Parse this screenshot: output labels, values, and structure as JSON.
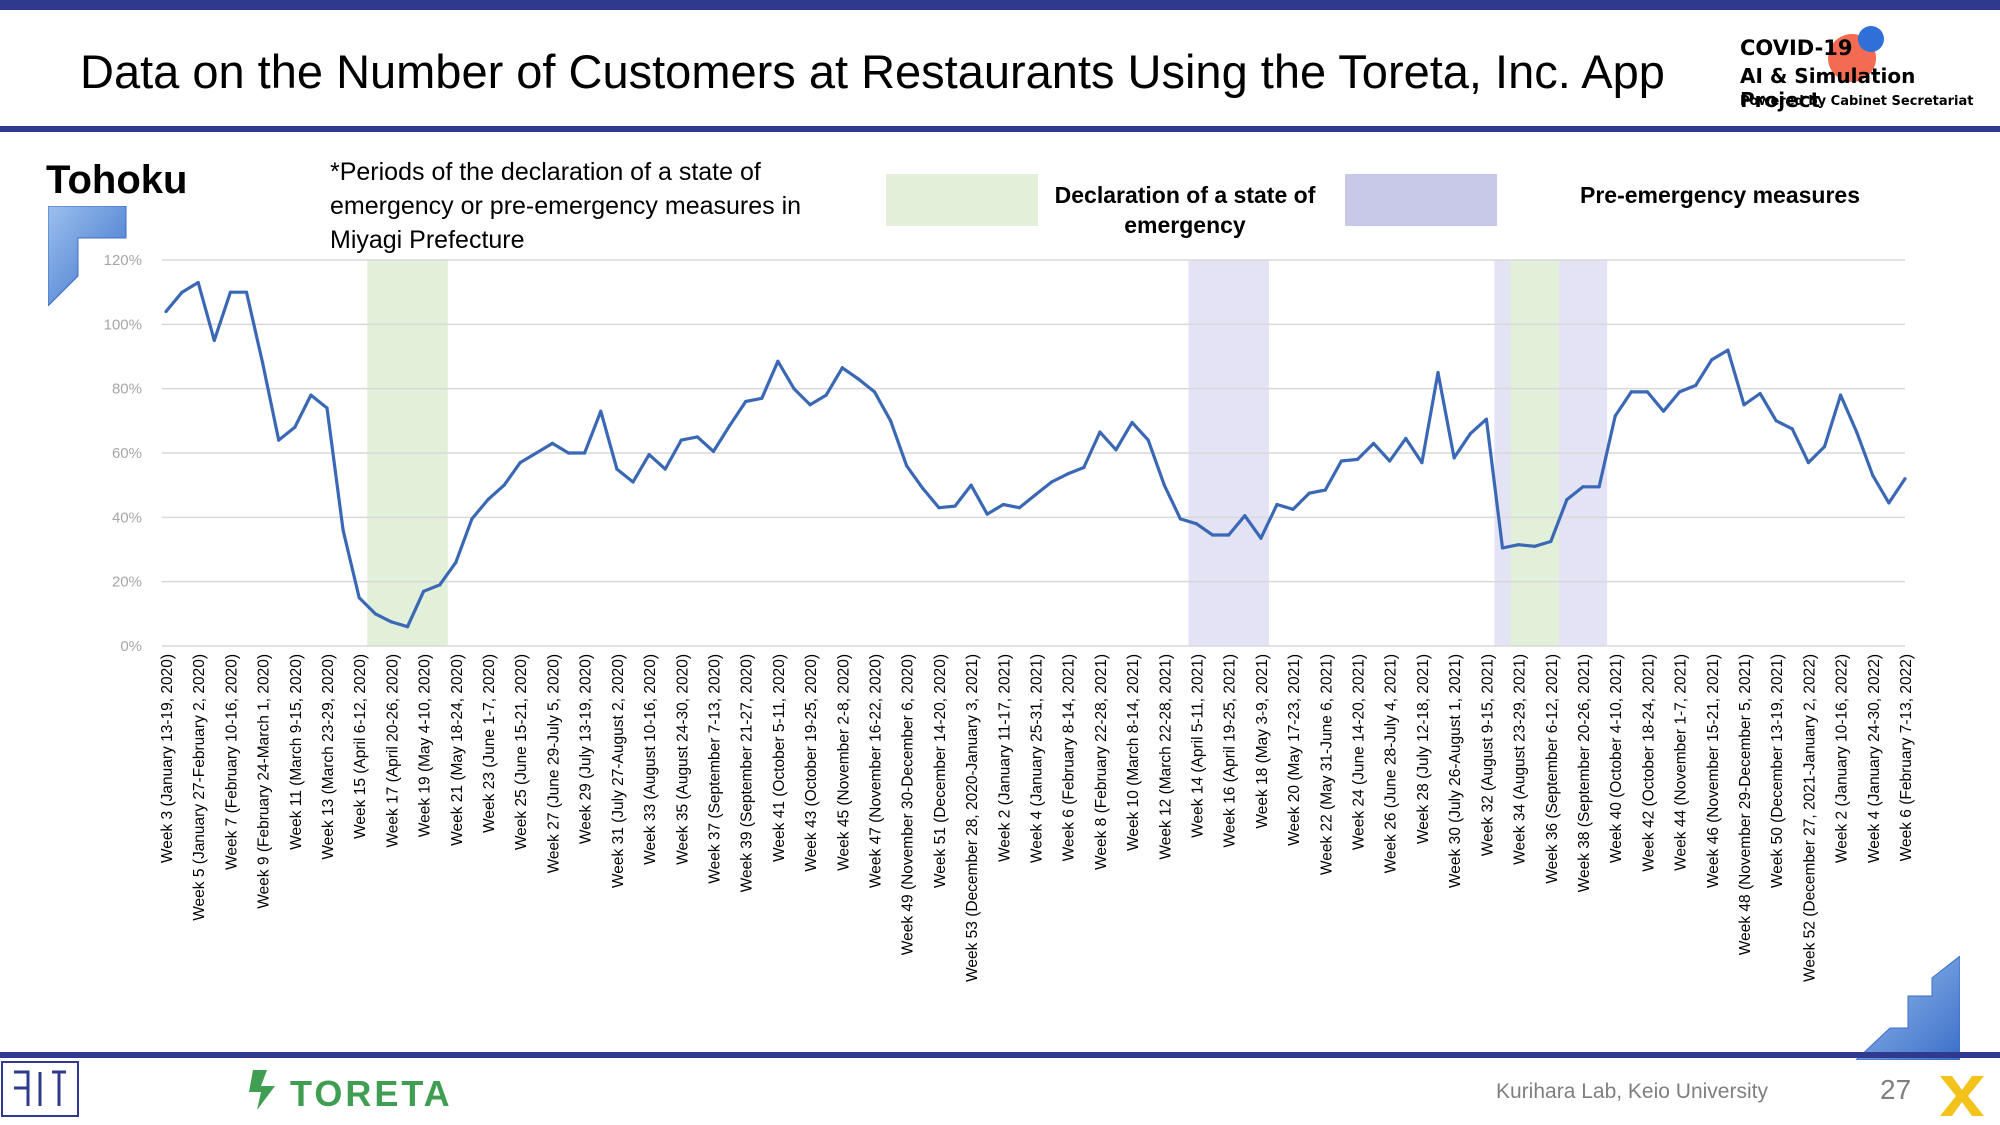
{
  "header": {
    "title": "Data on the Number of Customers at Restaurants Using the Toreta, Inc. App",
    "logo_line1": "COVID-19",
    "logo_line2": "AI & Simulation Project",
    "logo_line3": "Powered by Cabinet Secretariat"
  },
  "region": "Tohoku",
  "note": "*Periods of the declaration of a state of emergency or pre-emergency measures in Miyagi Prefecture",
  "legend": {
    "emergency_label": "Declaration of a state of emergency",
    "pre_emergency_label": "Pre-emergency measures"
  },
  "footer": {
    "brand": "TORETA",
    "lab": "Kurihara Lab, Keio University",
    "page": "27"
  },
  "colors": {
    "line": "#3a68b4",
    "emergency": "#e2efd9",
    "pre_emergency": "#e3e3f5",
    "header_bar": "#2f3a8f",
    "brand_green": "#3f9e52"
  },
  "chart_data": {
    "type": "line",
    "ylim": [
      0,
      120
    ],
    "yticks": [
      "0%",
      "20%",
      "40%",
      "60%",
      "80%",
      "100%",
      "120%"
    ],
    "grid": true,
    "series": [
      {
        "values": [
          104,
          110,
          113,
          95,
          110,
          110,
          88,
          64,
          68,
          78,
          74,
          36,
          15,
          10,
          7.5,
          6,
          17,
          19,
          26,
          39.5,
          45.5,
          50,
          57,
          60,
          63,
          60,
          60,
          73,
          55,
          51,
          59.5,
          55,
          64,
          65,
          60.5,
          68.5,
          76,
          77,
          88.5,
          80,
          75,
          78,
          86.5,
          83,
          79,
          70,
          56,
          49,
          43,
          43.5,
          50,
          41,
          44,
          43,
          47,
          51,
          53.5,
          55.5,
          66.5,
          61,
          69.5,
          64,
          50,
          39.5,
          38,
          34.5,
          34.5,
          40.5,
          33.5,
          44,
          42.5,
          47.5,
          48.5,
          57.5,
          58,
          63,
          57.5,
          64.5,
          57,
          85,
          58.5,
          66,
          70.5,
          30.5,
          31.5,
          31,
          32.5,
          45.5,
          49.5,
          49.5,
          71.5,
          79,
          79,
          73,
          79,
          81,
          89,
          92,
          75,
          78.5,
          70,
          67.5,
          57,
          62,
          78,
          66.5,
          53,
          44.5,
          52
        ]
      }
    ],
    "x_labels": [
      "Week 3 (January 13-19, 2020)",
      "Week 5 (January 27-February 2, 2020)",
      "Week 7 (February 10-16, 2020)",
      "Week 9 (February 24-March 1, 2020)",
      "Week 11 (March 9-15, 2020)",
      "Week 13 (March 23-29, 2020)",
      "Week 15 (April 6-12, 2020)",
      "Week 17 (April 20-26, 2020)",
      "Week 19 (May 4-10, 2020)",
      "Week 21 (May 18-24, 2020)",
      "Week 23 (June 1-7, 2020)",
      "Week 25 (June 15-21, 2020)",
      "Week 27 (June 29-July 5, 2020)",
      "Week 29 (July 13-19, 2020)",
      "Week 31 (July 27-August 2, 2020)",
      "Week 33 (August 10-16, 2020)",
      "Week 35 (August 24-30, 2020)",
      "Week 37 (September 7-13, 2020)",
      "Week 39 (September 21-27, 2020)",
      "Week 41 (October 5-11, 2020)",
      "Week 43 (October 19-25, 2020)",
      "Week 45 (November 2-8, 2020)",
      "Week 47 (November 16-22, 2020)",
      "Week 49 (November 30-December 6, 2020)",
      "Week 51 (December 14-20, 2020)",
      "Week 53 (December 28, 2020-January 3, 2021)",
      "Week 2 (January 11-17, 2021)",
      "Week 4 (January 25-31, 2021)",
      "Week 6 (February 8-14, 2021)",
      "Week 8 (February 22-28, 2021)",
      "Week 10 (March 8-14, 2021)",
      "Week 12 (March 22-28, 2021)",
      "Week 14 (April 5-11, 2021)",
      "Week 16 (April 19-25, 2021)",
      "Week 18 (May 3-9, 2021)",
      "Week 20 (May 17-23, 2021)",
      "Week 22 (May 31-June 6, 2021)",
      "Week 24 (June 14-20, 2021)",
      "Week 26 (June 28-July 4, 2021)",
      "Week 28 (July 12-18, 2021)",
      "Week 30 (July 26-August 1, 2021)",
      "Week 32 (August 9-15, 2021)",
      "Week 34 (August 23-29, 2021)",
      "Week 36 (September 6-12, 2021)",
      "Week 38 (September 20-26, 2021)",
      "Week 40 (October 4-10, 2021)",
      "Week 42 (October 18-24, 2021)",
      "Week 44 (November 1-7, 2021)",
      "Week 46 (November 15-21, 2021)",
      "Week 48 (November 29-December 5, 2021)",
      "Week 50 (December 13-19, 2021)",
      "Week 52 (December 27, 2021-January 2, 2022)",
      "Week 2 (January 10-16, 2022)",
      "Week 4 (January 24-30, 2022)",
      "Week 6 (February 7-13, 2022)"
    ],
    "shaded_periods": [
      {
        "kind": "emergency",
        "from_index": 12.5,
        "to_index": 17.5
      },
      {
        "kind": "pre_emergency",
        "from_index": 63.5,
        "to_index": 68.5
      },
      {
        "kind": "pre_emergency",
        "from_index": 82.5,
        "to_index": 83.5
      },
      {
        "kind": "emergency",
        "from_index": 83.5,
        "to_index": 86.5
      },
      {
        "kind": "pre_emergency",
        "from_index": 86.5,
        "to_index": 89.5
      }
    ]
  }
}
